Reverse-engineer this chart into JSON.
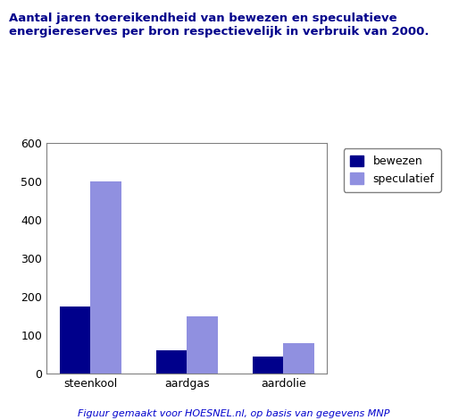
{
  "title_line1": "Aantal jaren toereikendheid van bewezen en speculatieve",
  "title_line2": "energiereserves per bron respectievelijk in verbruik van 2000.",
  "categories": [
    "steenkool",
    "aardgas",
    "aardolie"
  ],
  "bewezen": [
    175,
    60,
    45
  ],
  "speculatief": [
    500,
    150,
    80
  ],
  "color_bewezen": "#00008B",
  "color_speculatief": "#9090E0",
  "ylim": [
    0,
    600
  ],
  "yticks": [
    0,
    100,
    200,
    300,
    400,
    500,
    600
  ],
  "legend_labels": [
    "bewezen",
    "speculatief"
  ],
  "footer": "Figuur gemaakt voor HOESNEL.nl, op basis van gegevens MNP",
  "title_color": "#00008B",
  "footer_color": "#0000CC",
  "background_color": "#ffffff",
  "bar_width": 0.32
}
